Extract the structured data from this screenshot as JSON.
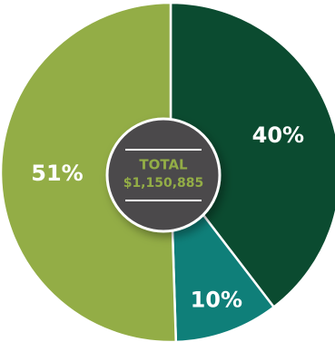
{
  "chart_data": {
    "type": "pie",
    "style": "donut-with-center-badge",
    "slices": [
      {
        "label": "40%",
        "value": 40,
        "color": "#0b4b30"
      },
      {
        "label": "10%",
        "value": 10,
        "color": "#0f7f79"
      },
      {
        "label": "51%",
        "value": 51,
        "color": "#93ad46"
      }
    ],
    "center": {
      "title": "TOTAL",
      "value": "$1,150,885",
      "title_color": "#93ad46",
      "value_color": "#93ad46",
      "background": "#4b4a4c",
      "rule_color": "#ffffff"
    },
    "legend": "none",
    "slice_border_color": "#ffffff"
  }
}
